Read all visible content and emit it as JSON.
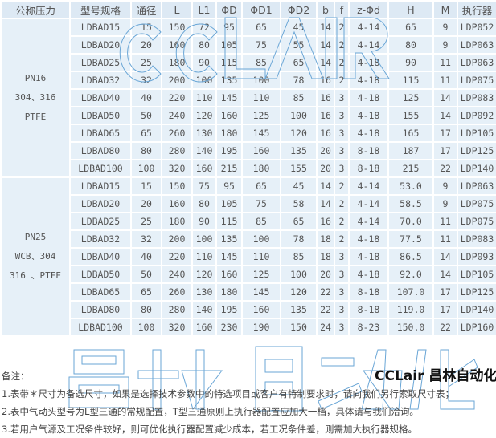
{
  "headers": [
    "公称压力",
    "型号规格",
    "通径",
    "L",
    "L1",
    "ΦD",
    "ΦD1",
    "ΦD2",
    "b",
    "f",
    "z-Φd",
    "H",
    "M",
    "执行器"
  ],
  "groups": [
    {
      "lines": [
        "PN16",
        "304、316",
        "PTFE"
      ],
      "rows": [
        [
          "LDBAD15",
          "15",
          "150",
          "72",
          "95",
          "65",
          "45",
          "14",
          "2",
          "4-14",
          "65",
          "9",
          "LDP052"
        ],
        [
          "LDBAD20",
          "20",
          "160",
          "80",
          "105",
          "75",
          "55",
          "14",
          "2",
          "4-14",
          "80",
          "9",
          "LDP063"
        ],
        [
          "LDBAD25",
          "25",
          "180",
          "90",
          "115",
          "85",
          "65",
          "14",
          "2",
          "4-18",
          "90",
          "11",
          "LDP063"
        ],
        [
          "LDBAD32",
          "32",
          "200",
          "100",
          "135",
          "100",
          "78",
          "16",
          "2",
          "4-18",
          "115",
          "11",
          "LDP075"
        ],
        [
          "LDBAD40",
          "40",
          "220",
          "110",
          "145",
          "110",
          "85",
          "16",
          "3",
          "4-18",
          "125",
          "14",
          "LDP083"
        ],
        [
          "LDBAD50",
          "50",
          "240",
          "120",
          "160",
          "125",
          "100",
          "16",
          "3",
          "4-18",
          "155",
          "14",
          "LDP092"
        ],
        [
          "LDBAD65",
          "65",
          "260",
          "130",
          "180",
          "145",
          "120",
          "16",
          "3",
          "4-18",
          "165",
          "17",
          "LDP105"
        ],
        [
          "LDBAD80",
          "80",
          "280",
          "140",
          "195",
          "160",
          "135",
          "20",
          "3",
          "8-18",
          "187",
          "17",
          "LDP125"
        ],
        [
          "LDBAD100",
          "100",
          "320",
          "160",
          "215",
          "180",
          "155",
          "20",
          "3",
          "8-18",
          "215",
          "22",
          "LDP140"
        ]
      ]
    },
    {
      "lines": [
        "PN25",
        "WCB、304",
        "316 、PTFE"
      ],
      "rows": [
        [
          "LDBAD15",
          "15",
          "150",
          "75",
          "95",
          "65",
          "45",
          "14",
          "2",
          "4-14",
          "53.0",
          "9",
          "LDP063"
        ],
        [
          "LDBAD20",
          "20",
          "160",
          "80",
          "105",
          "75",
          "58",
          "14",
          "2",
          "4-14",
          "58.5",
          "9",
          "LDP075"
        ],
        [
          "LDBAD25",
          "25",
          "180",
          "90",
          "115",
          "85",
          "65",
          "16",
          "2",
          "4-14",
          "70.0",
          "11",
          "LDP075"
        ],
        [
          "LDBAD32",
          "32",
          "200",
          "100",
          "135",
          "100",
          "78",
          "18",
          "2",
          "4-18",
          "77.5",
          "11",
          "LDP083"
        ],
        [
          "LDBAD40",
          "40",
          "220",
          "110",
          "145",
          "110",
          "85",
          "18",
          "3",
          "4-18",
          "86.5",
          "14",
          "LDP093"
        ],
        [
          "LDBAD50",
          "50",
          "240",
          "120",
          "160",
          "125",
          "100",
          "20",
          "3",
          "4-18",
          "92.0",
          "14",
          "LDP105"
        ],
        [
          "LDBAD65",
          "65",
          "260",
          "130",
          "180",
          "145",
          "120",
          "22",
          "3",
          "8-18",
          "107.0",
          "17",
          "LDP125"
        ],
        [
          "LDBAD80",
          "80",
          "280",
          "140",
          "195",
          "160",
          "135",
          "22",
          "3",
          "8-18",
          "119.0",
          "17",
          "LDP140"
        ],
        [
          "LDBAD100",
          "100",
          "320",
          "160",
          "230",
          "190",
          "150",
          "24",
          "3",
          "8-23",
          "150.0",
          "22",
          "LDP160"
        ]
      ]
    }
  ],
  "notes": {
    "title": "备注：",
    "items": [
      "1.表带＊尺寸为备选尺寸，如果是选择技术参数中的特选项目或客户有特制要求时，请向我们另行索取尺寸表；",
      "2.表中气动头型号为L型三通的常规配置，T型三通原则上执行器配置应加大一档，具体请与我们洽询。",
      "3.若用户气源及工况条件较好，则可优化执行器配置减少成本，若工况条件差，则需加大执行器规格。"
    ]
  },
  "watermark": {
    "top": "CCLAIR",
    "bottom": "昌林自动化",
    "color": "#6aa6d6"
  },
  "logo": "CCLair 昌林自动化"
}
